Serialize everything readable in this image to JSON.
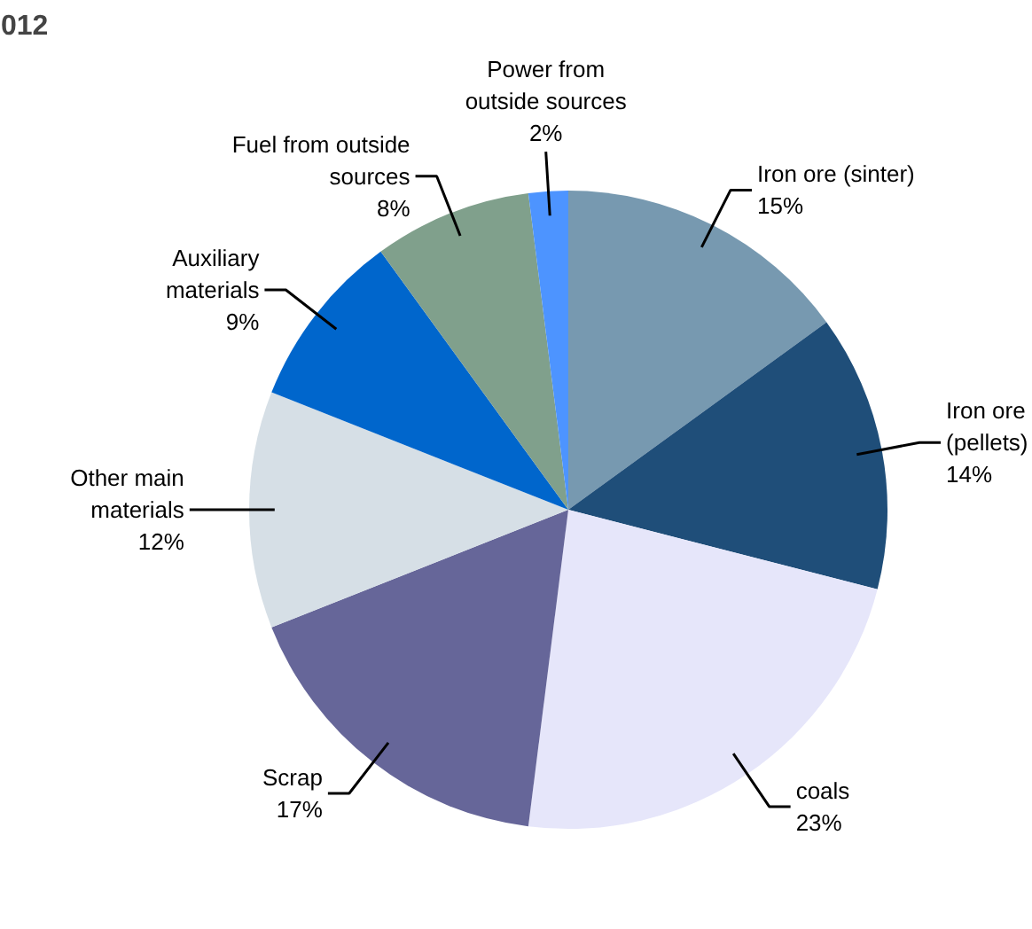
{
  "chart_data": {
    "type": "pie",
    "title": "012",
    "categories": [
      "Iron ore (sinter)",
      "Iron ore (pellets)",
      "coals",
      "Scrap",
      "Other main materials",
      "Auxiliary materials",
      "Fuel from outside sources",
      "Power from outside sources"
    ],
    "values": [
      15,
      14,
      23,
      17,
      12,
      9,
      8,
      2
    ],
    "value_labels": [
      "15%",
      "14%",
      "23%",
      "17%",
      "12%",
      "9%",
      "8%",
      "2%"
    ],
    "colors": [
      "#7799b0",
      "#1f4e79",
      "#e6e6fa",
      "#666699",
      "#d6dfe6",
      "#0066cc",
      "#80a08c",
      "#4d94ff"
    ]
  }
}
